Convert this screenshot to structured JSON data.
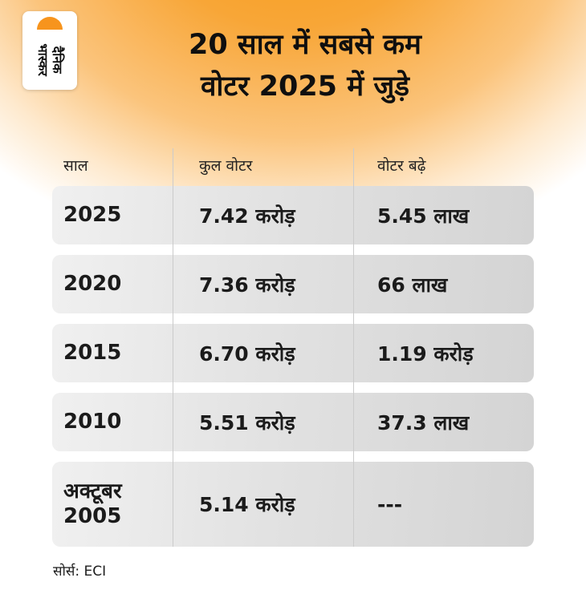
{
  "logo": {
    "line1": "दैनिक",
    "line2": "भास्कर"
  },
  "title": {
    "line1": "20 साल में सबसे कम",
    "line2": "वोटर 2025 में जुड़े"
  },
  "chart_data": {
    "type": "table",
    "title": "20 साल में सबसे कम वोटर 2025 में जुड़े",
    "columns": [
      "साल",
      "कुल वोटर",
      "वोटर बढ़े"
    ],
    "rows": [
      [
        "2025",
        "7.42 करोड़",
        "5.45 लाख"
      ],
      [
        "2020",
        "7.36 करोड़",
        "66 लाख"
      ],
      [
        "2015",
        "6.70 करोड़",
        "1.19 करोड़"
      ],
      [
        "2010",
        "5.51 करोड़",
        "37.3 लाख"
      ],
      [
        "अक्टूबर 2005",
        "5.14 करोड़",
        "---"
      ]
    ],
    "source": "सोर्स: ECI"
  },
  "footer": {
    "source_label": "सोर्स: ECI"
  },
  "colors": {
    "brand_orange": "#F7941D",
    "row_gradient_start": "#F0F0F0",
    "row_gradient_end": "#D4D4D4"
  }
}
